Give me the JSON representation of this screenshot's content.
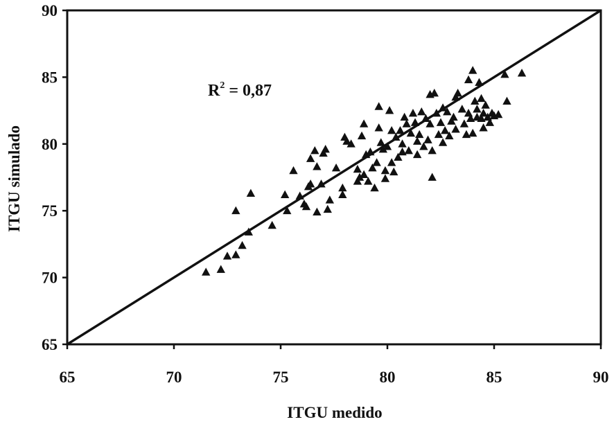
{
  "chart_data": {
    "type": "scatter",
    "xlabel": "ITGU medido",
    "ylabel": "ITGU simulado",
    "xlim": [
      65,
      90
    ],
    "ylim": [
      65,
      90
    ],
    "xticks": [
      65,
      70,
      75,
      80,
      85,
      90
    ],
    "yticks": [
      65,
      70,
      75,
      80,
      85,
      90
    ],
    "grid": false,
    "marker": "triangle",
    "colors": {
      "marker": "#111111",
      "line": "#111111",
      "frame": "#111111"
    },
    "reference_line": {
      "from": [
        65,
        65
      ],
      "to": [
        90,
        90
      ]
    },
    "annotation": {
      "base": "R",
      "sup": "2",
      "rest": " = 0,87"
    },
    "points": [
      [
        71.5,
        70.4
      ],
      [
        72.2,
        70.6
      ],
      [
        72.5,
        71.6
      ],
      [
        72.9,
        71.7
      ],
      [
        73.2,
        72.4
      ],
      [
        72.9,
        75.0
      ],
      [
        73.5,
        73.4
      ],
      [
        73.6,
        76.3
      ],
      [
        74.6,
        73.9
      ],
      [
        75.3,
        75.0
      ],
      [
        75.2,
        76.2
      ],
      [
        75.6,
        78.0
      ],
      [
        75.9,
        76.1
      ],
      [
        76.1,
        75.5
      ],
      [
        76.2,
        75.3
      ],
      [
        76.3,
        76.8
      ],
      [
        76.4,
        77.0
      ],
      [
        76.4,
        78.9
      ],
      [
        76.6,
        79.5
      ],
      [
        76.7,
        78.3
      ],
      [
        76.7,
        74.9
      ],
      [
        76.9,
        77.0
      ],
      [
        77.0,
        79.3
      ],
      [
        77.1,
        79.6
      ],
      [
        77.2,
        75.1
      ],
      [
        77.3,
        75.8
      ],
      [
        77.6,
        78.2
      ],
      [
        77.9,
        76.2
      ],
      [
        77.9,
        76.7
      ],
      [
        78.0,
        80.5
      ],
      [
        78.1,
        80.2
      ],
      [
        78.3,
        80.0
      ],
      [
        78.6,
        78.1
      ],
      [
        78.6,
        77.2
      ],
      [
        78.7,
        77.5
      ],
      [
        78.8,
        80.6
      ],
      [
        78.9,
        81.5
      ],
      [
        78.9,
        77.7
      ],
      [
        79.0,
        79.2
      ],
      [
        79.1,
        77.2
      ],
      [
        79.2,
        79.4
      ],
      [
        79.3,
        78.2
      ],
      [
        79.4,
        76.7
      ],
      [
        79.5,
        78.6
      ],
      [
        79.6,
        81.2
      ],
      [
        79.6,
        82.8
      ],
      [
        79.7,
        80.1
      ],
      [
        79.8,
        79.6
      ],
      [
        79.9,
        78.0
      ],
      [
        79.9,
        77.4
      ],
      [
        80.0,
        79.8
      ],
      [
        80.1,
        82.5
      ],
      [
        80.2,
        81.0
      ],
      [
        80.2,
        78.6
      ],
      [
        80.3,
        77.9
      ],
      [
        80.4,
        80.5
      ],
      [
        80.5,
        79.0
      ],
      [
        80.6,
        81.0
      ],
      [
        80.7,
        79.4
      ],
      [
        80.7,
        80.0
      ],
      [
        80.8,
        82.0
      ],
      [
        80.9,
        81.5
      ],
      [
        81.0,
        79.5
      ],
      [
        81.1,
        80.8
      ],
      [
        81.2,
        82.3
      ],
      [
        81.3,
        81.6
      ],
      [
        81.4,
        80.2
      ],
      [
        81.4,
        79.2
      ],
      [
        81.5,
        80.7
      ],
      [
        81.6,
        82.4
      ],
      [
        81.7,
        79.8
      ],
      [
        81.8,
        81.9
      ],
      [
        81.9,
        80.3
      ],
      [
        82.0,
        81.5
      ],
      [
        82.0,
        83.7
      ],
      [
        82.1,
        79.5
      ],
      [
        82.1,
        77.5
      ],
      [
        82.2,
        83.8
      ],
      [
        82.3,
        82.3
      ],
      [
        82.4,
        80.7
      ],
      [
        82.5,
        81.6
      ],
      [
        82.6,
        82.7
      ],
      [
        82.6,
        80.1
      ],
      [
        82.7,
        81.0
      ],
      [
        82.8,
        82.4
      ],
      [
        82.9,
        80.6
      ],
      [
        83.0,
        81.7
      ],
      [
        83.1,
        82.0
      ],
      [
        83.2,
        83.5
      ],
      [
        83.2,
        81.1
      ],
      [
        83.3,
        83.8
      ],
      [
        83.5,
        82.6
      ],
      [
        83.6,
        81.5
      ],
      [
        83.7,
        80.7
      ],
      [
        83.8,
        82.3
      ],
      [
        83.8,
        84.8
      ],
      [
        83.9,
        81.9
      ],
      [
        84.0,
        85.5
      ],
      [
        84.0,
        80.8
      ],
      [
        84.1,
        83.2
      ],
      [
        84.2,
        82.0
      ],
      [
        84.2,
        82.6
      ],
      [
        84.3,
        84.6
      ],
      [
        84.4,
        81.9
      ],
      [
        84.4,
        83.4
      ],
      [
        84.5,
        82.3
      ],
      [
        84.5,
        81.2
      ],
      [
        84.6,
        82.9
      ],
      [
        84.7,
        82.0
      ],
      [
        84.8,
        81.6
      ],
      [
        84.9,
        82.3
      ],
      [
        85.0,
        82.1
      ],
      [
        85.2,
        82.2
      ],
      [
        85.5,
        85.2
      ],
      [
        85.6,
        83.2
      ],
      [
        86.3,
        85.3
      ]
    ]
  }
}
